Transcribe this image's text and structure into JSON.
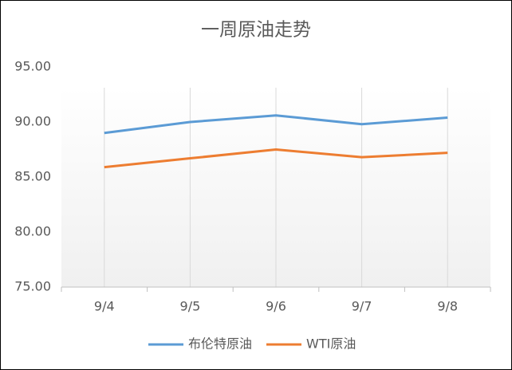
{
  "chart_data": {
    "type": "line",
    "title": "一周原油走势",
    "categories": [
      "9/4",
      "9/5",
      "9/6",
      "9/7",
      "9/8"
    ],
    "series": [
      {
        "name": "布伦特原油",
        "color": "#5b9bd5",
        "values": [
          89.0,
          90.0,
          90.6,
          89.8,
          90.4
        ]
      },
      {
        "name": "WTI原油",
        "color": "#ed7d31",
        "values": [
          85.9,
          86.7,
          87.5,
          86.8,
          87.2
        ]
      }
    ],
    "ylim": [
      75,
      95
    ],
    "yticks": [
      {
        "value": 75,
        "label": "75.00"
      },
      {
        "value": 80,
        "label": "80.00"
      },
      {
        "value": 85,
        "label": "85.00"
      },
      {
        "value": 90,
        "label": "90.00"
      },
      {
        "value": 95,
        "label": "95.00"
      }
    ],
    "legend": "bottom"
  }
}
